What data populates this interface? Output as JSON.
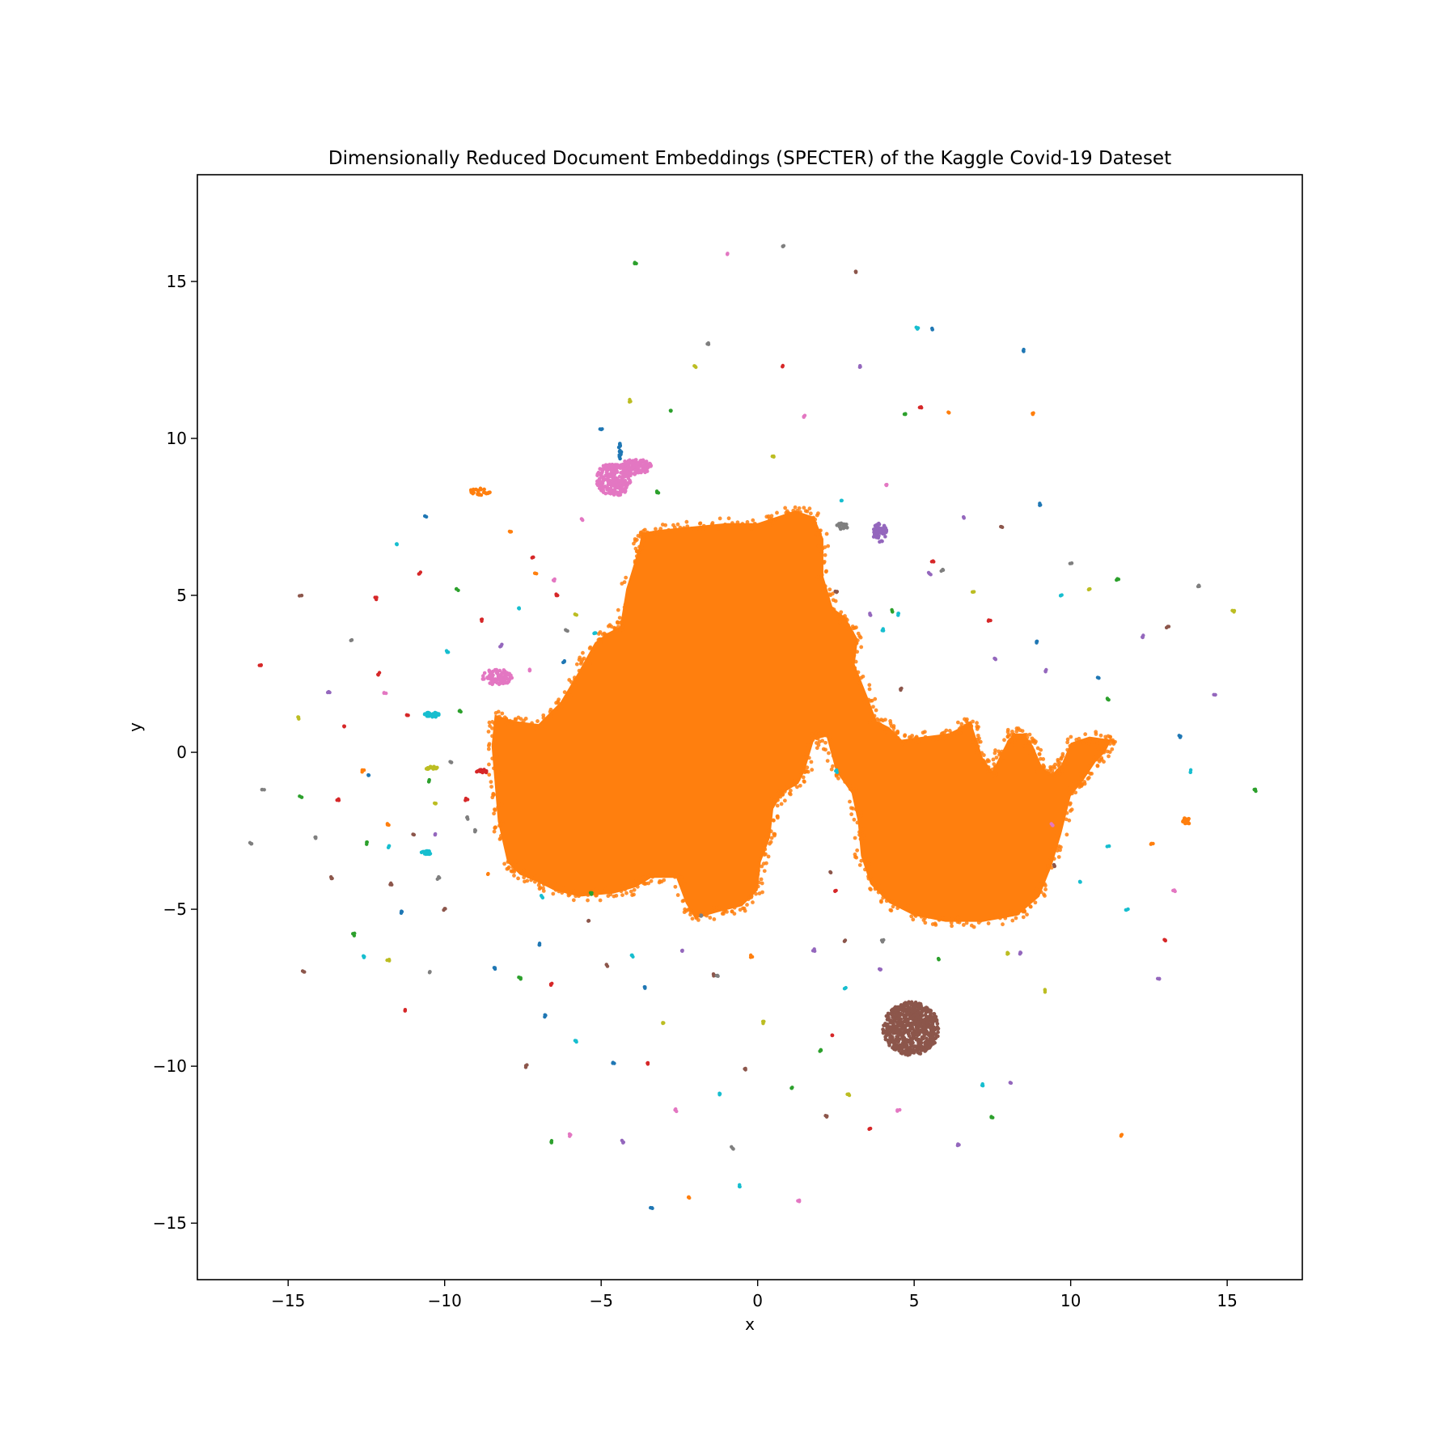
{
  "chart_data": {
    "type": "scatter",
    "title": "Dimensionally Reduced Document Embeddings (SPECTER) of the Kaggle Covid-19 Dateset",
    "xlabel": "x",
    "ylabel": "y",
    "xlim": [
      -17.9,
      17.4
    ],
    "ylim": [
      -16.8,
      18.4
    ],
    "xticks": [
      -15,
      -10,
      -5,
      0,
      5,
      10,
      15
    ],
    "xtick_labels": [
      "−15",
      "−10",
      "−5",
      "0",
      "5",
      "10",
      "15"
    ],
    "yticks": [
      -15,
      -10,
      -5,
      0,
      5,
      10,
      15
    ],
    "ytick_labels": [
      "−15",
      "−10",
      "−5",
      "0",
      "5",
      "10",
      "15"
    ],
    "grid": false,
    "legend": "none",
    "main_cluster": {
      "color": "#ff7f0e",
      "outline": [
        [
          -8.4,
          1.2
        ],
        [
          -7.8,
          1.0
        ],
        [
          -7.0,
          0.9
        ],
        [
          -6.3,
          1.6
        ],
        [
          -5.7,
          2.6
        ],
        [
          -5.2,
          3.5
        ],
        [
          -4.8,
          3.8
        ],
        [
          -4.4,
          4.0
        ],
        [
          -4.2,
          5.2
        ],
        [
          -3.8,
          6.5
        ],
        [
          -3.7,
          7.0
        ],
        [
          -3.0,
          7.1
        ],
        [
          -2.0,
          7.2
        ],
        [
          -1.0,
          7.3
        ],
        [
          0.0,
          7.3
        ],
        [
          0.6,
          7.5
        ],
        [
          1.2,
          7.7
        ],
        [
          1.8,
          7.5
        ],
        [
          2.1,
          6.8
        ],
        [
          2.1,
          5.6
        ],
        [
          2.4,
          4.6
        ],
        [
          2.8,
          4.3
        ],
        [
          3.2,
          3.6
        ],
        [
          3.1,
          2.8
        ],
        [
          3.5,
          1.8
        ],
        [
          3.8,
          1.0
        ],
        [
          4.2,
          0.8
        ],
        [
          4.6,
          0.4
        ],
        [
          5.3,
          0.5
        ],
        [
          6.1,
          0.6
        ],
        [
          6.5,
          0.8
        ],
        [
          6.8,
          1.0
        ],
        [
          7.0,
          0.4
        ],
        [
          7.2,
          -0.2
        ],
        [
          7.5,
          -0.6
        ],
        [
          7.7,
          -0.2
        ],
        [
          8.0,
          0.4
        ],
        [
          8.2,
          0.6
        ],
        [
          8.5,
          0.6
        ],
        [
          8.8,
          0.2
        ],
        [
          9.1,
          -0.5
        ],
        [
          9.4,
          -0.7
        ],
        [
          9.7,
          -0.4
        ],
        [
          10.0,
          0.3
        ],
        [
          10.6,
          0.5
        ],
        [
          11.3,
          0.4
        ],
        [
          11.1,
          0.0
        ],
        [
          10.8,
          -0.3
        ],
        [
          10.4,
          -0.9
        ],
        [
          10.0,
          -1.4
        ],
        [
          9.7,
          -2.6
        ],
        [
          9.4,
          -3.6
        ],
        [
          9.0,
          -4.6
        ],
        [
          8.3,
          -5.2
        ],
        [
          7.2,
          -5.4
        ],
        [
          6.0,
          -5.4
        ],
        [
          5.0,
          -5.2
        ],
        [
          4.2,
          -4.8
        ],
        [
          3.6,
          -4.2
        ],
        [
          3.3,
          -3.3
        ],
        [
          3.2,
          -2.2
        ],
        [
          3.0,
          -1.3
        ],
        [
          2.5,
          -0.6
        ],
        [
          2.2,
          0.5
        ],
        [
          1.8,
          0.4
        ],
        [
          1.5,
          -0.6
        ],
        [
          1.3,
          -1.0
        ],
        [
          0.8,
          -1.3
        ],
        [
          0.5,
          -1.8
        ],
        [
          0.4,
          -2.7
        ],
        [
          0.1,
          -3.5
        ],
        [
          0.0,
          -4.4
        ],
        [
          -0.5,
          -4.9
        ],
        [
          -1.3,
          -5.1
        ],
        [
          -2.0,
          -5.3
        ],
        [
          -2.3,
          -4.8
        ],
        [
          -2.6,
          -4.0
        ],
        [
          -3.4,
          -4.0
        ],
        [
          -3.9,
          -4.3
        ],
        [
          -4.6,
          -4.5
        ],
        [
          -5.7,
          -4.6
        ],
        [
          -6.5,
          -4.4
        ],
        [
          -7.1,
          -4.1
        ],
        [
          -7.6,
          -3.9
        ],
        [
          -8.0,
          -3.5
        ],
        [
          -8.3,
          -2.2
        ],
        [
          -8.4,
          -1.0
        ],
        [
          -8.5,
          0.2
        ]
      ]
    },
    "clusters": [
      {
        "color": "#8c564b",
        "x": 4.9,
        "y": -8.8,
        "rx": 0.9,
        "ry": 0.85,
        "n": 700
      },
      {
        "color": "#e377c2",
        "x": -4.6,
        "y": 8.7,
        "rx": 0.55,
        "ry": 0.55,
        "n": 220
      },
      {
        "color": "#e377c2",
        "x": -3.9,
        "y": 9.1,
        "rx": 0.5,
        "ry": 0.25,
        "n": 120
      },
      {
        "color": "#e377c2",
        "x": -8.3,
        "y": 2.4,
        "rx": 0.5,
        "ry": 0.25,
        "n": 90
      },
      {
        "color": "#9467bd",
        "x": 3.9,
        "y": 7.0,
        "rx": 0.22,
        "ry": 0.3,
        "n": 60
      },
      {
        "color": "#17becf",
        "x": -10.4,
        "y": 1.2,
        "rx": 0.25,
        "ry": 0.08,
        "n": 30
      },
      {
        "color": "#bcbd22",
        "x": -10.4,
        "y": -0.5,
        "rx": 0.2,
        "ry": 0.06,
        "n": 20
      },
      {
        "color": "#d62728",
        "x": -8.8,
        "y": -0.6,
        "rx": 0.2,
        "ry": 0.06,
        "n": 20
      },
      {
        "color": "#17becf",
        "x": -10.6,
        "y": -3.2,
        "rx": 0.18,
        "ry": 0.06,
        "n": 18
      },
      {
        "color": "#7f7f7f",
        "x": 2.7,
        "y": 7.2,
        "rx": 0.18,
        "ry": 0.1,
        "n": 20
      },
      {
        "color": "#1f77b4",
        "x": -4.4,
        "y": 9.6,
        "rx": 0.05,
        "ry": 0.25,
        "n": 15
      },
      {
        "color": "#ff7f0e",
        "x": -8.9,
        "y": 8.3,
        "rx": 0.35,
        "ry": 0.12,
        "n": 25
      },
      {
        "color": "#ff7f0e",
        "x": 13.7,
        "y": -2.2,
        "rx": 0.12,
        "ry": 0.12,
        "n": 15
      }
    ],
    "scatter_points": [
      [
        -16.2,
        -2.9,
        "#7f7f7f"
      ],
      [
        -15.9,
        2.8,
        "#d62728"
      ],
      [
        -15.8,
        -1.2,
        "#7f7f7f"
      ],
      [
        -14.7,
        1.1,
        "#bcbd22"
      ],
      [
        -14.6,
        -1.4,
        "#2ca02c"
      ],
      [
        -14.5,
        -7.0,
        "#8c564b"
      ],
      [
        -14.6,
        5.0,
        "#8c564b"
      ],
      [
        -14.1,
        -2.7,
        "#7f7f7f"
      ],
      [
        -13.7,
        1.9,
        "#9467bd"
      ],
      [
        -13.6,
        -4.0,
        "#8c564b"
      ],
      [
        -13.4,
        -1.5,
        "#d62728"
      ],
      [
        -13.2,
        0.8,
        "#d62728"
      ],
      [
        -13.0,
        3.6,
        "#7f7f7f"
      ],
      [
        -12.9,
        -5.8,
        "#2ca02c"
      ],
      [
        -12.6,
        -0.6,
        "#ff7f0e"
      ],
      [
        -12.5,
        -2.9,
        "#2ca02c"
      ],
      [
        -12.4,
        -0.7,
        "#1f77b4"
      ],
      [
        -12.2,
        4.9,
        "#d62728"
      ],
      [
        -12.1,
        2.5,
        "#d62728"
      ],
      [
        -11.9,
        1.9,
        "#e377c2"
      ],
      [
        -11.8,
        -2.3,
        "#ff7f0e"
      ],
      [
        -11.8,
        -6.6,
        "#bcbd22"
      ],
      [
        -11.7,
        -4.2,
        "#8c564b"
      ],
      [
        -11.5,
        6.6,
        "#17becf"
      ],
      [
        -11.4,
        -5.1,
        "#1f77b4"
      ],
      [
        -11.3,
        -8.2,
        "#d62728"
      ],
      [
        -11.2,
        1.2,
        "#d62728"
      ],
      [
        -11.0,
        -2.6,
        "#8c564b"
      ],
      [
        -10.8,
        5.7,
        "#d62728"
      ],
      [
        -10.6,
        7.5,
        "#1f77b4"
      ],
      [
        -10.5,
        -0.9,
        "#2ca02c"
      ],
      [
        -10.3,
        -1.6,
        "#bcbd22"
      ],
      [
        -10.2,
        -4.0,
        "#7f7f7f"
      ],
      [
        -10.0,
        -5.0,
        "#8c564b"
      ],
      [
        -9.9,
        3.2,
        "#17becf"
      ],
      [
        -9.8,
        -0.3,
        "#7f7f7f"
      ],
      [
        -9.6,
        5.2,
        "#2ca02c"
      ],
      [
        -9.5,
        1.3,
        "#2ca02c"
      ],
      [
        -9.3,
        -1.5,
        "#d62728"
      ],
      [
        -9.0,
        -2.5,
        "#7f7f7f"
      ],
      [
        -8.8,
        4.2,
        "#d62728"
      ],
      [
        -8.6,
        -3.9,
        "#ff7f0e"
      ],
      [
        -8.4,
        -6.9,
        "#1f77b4"
      ],
      [
        -8.2,
        3.4,
        "#9467bd"
      ],
      [
        -7.9,
        7.0,
        "#ff7f0e"
      ],
      [
        -7.6,
        -7.2,
        "#2ca02c"
      ],
      [
        -7.4,
        -10.0,
        "#8c564b"
      ],
      [
        -7.2,
        6.2,
        "#d62728"
      ],
      [
        -7.0,
        -6.1,
        "#1f77b4"
      ],
      [
        -6.8,
        -8.4,
        "#1f77b4"
      ],
      [
        -6.6,
        -12.4,
        "#2ca02c"
      ],
      [
        -6.4,
        5.0,
        "#d62728"
      ],
      [
        -6.2,
        2.9,
        "#1f77b4"
      ],
      [
        -6.0,
        -12.2,
        "#e377c2"
      ],
      [
        -5.8,
        -9.2,
        "#17becf"
      ],
      [
        -5.6,
        7.4,
        "#e377c2"
      ],
      [
        -5.4,
        -5.4,
        "#8c564b"
      ],
      [
        -5.2,
        3.8,
        "#17becf"
      ],
      [
        -5.0,
        10.3,
        "#1f77b4"
      ],
      [
        -4.8,
        -6.8,
        "#8c564b"
      ],
      [
        -4.6,
        -9.9,
        "#1f77b4"
      ],
      [
        -4.3,
        -12.4,
        "#9467bd"
      ],
      [
        -4.1,
        11.2,
        "#bcbd22"
      ],
      [
        -4.0,
        -6.5,
        "#17becf"
      ],
      [
        -3.9,
        15.6,
        "#2ca02c"
      ],
      [
        -3.6,
        -7.5,
        "#1f77b4"
      ],
      [
        -3.4,
        -14.5,
        "#1f77b4"
      ],
      [
        -3.2,
        8.3,
        "#2ca02c"
      ],
      [
        -3.0,
        -8.6,
        "#bcbd22"
      ],
      [
        -2.8,
        10.9,
        "#2ca02c"
      ],
      [
        -2.6,
        -11.4,
        "#e377c2"
      ],
      [
        -2.4,
        -6.3,
        "#9467bd"
      ],
      [
        -2.2,
        -14.2,
        "#ff7f0e"
      ],
      [
        -2.0,
        12.3,
        "#bcbd22"
      ],
      [
        -1.8,
        -5.2,
        "#7f7f7f"
      ],
      [
        -1.6,
        13.0,
        "#7f7f7f"
      ],
      [
        -1.4,
        -7.1,
        "#8c564b"
      ],
      [
        -1.2,
        -10.9,
        "#17becf"
      ],
      [
        -1.0,
        15.9,
        "#e377c2"
      ],
      [
        -0.8,
        -12.6,
        "#7f7f7f"
      ],
      [
        -0.6,
        -13.8,
        "#17becf"
      ],
      [
        -0.4,
        -10.1,
        "#8c564b"
      ],
      [
        -0.2,
        -6.5,
        "#ff7f0e"
      ],
      [
        0.2,
        -8.6,
        "#bcbd22"
      ],
      [
        0.5,
        9.4,
        "#bcbd22"
      ],
      [
        0.8,
        16.1,
        "#7f7f7f"
      ],
      [
        0.8,
        12.3,
        "#d62728"
      ],
      [
        1.1,
        -10.7,
        "#2ca02c"
      ],
      [
        1.3,
        -14.3,
        "#e377c2"
      ],
      [
        1.5,
        10.7,
        "#e377c2"
      ],
      [
        1.8,
        -6.3,
        "#9467bd"
      ],
      [
        2.0,
        -9.5,
        "#2ca02c"
      ],
      [
        2.2,
        -11.6,
        "#8c564b"
      ],
      [
        2.5,
        5.1,
        "#8c564b"
      ],
      [
        2.7,
        8.0,
        "#17becf"
      ],
      [
        2.9,
        -10.9,
        "#bcbd22"
      ],
      [
        3.1,
        15.3,
        "#8c564b"
      ],
      [
        3.3,
        12.3,
        "#9467bd"
      ],
      [
        3.6,
        -12.0,
        "#d62728"
      ],
      [
        3.9,
        -6.9,
        "#9467bd"
      ],
      [
        4.1,
        8.5,
        "#e377c2"
      ],
      [
        4.3,
        4.5,
        "#2ca02c"
      ],
      [
        4.5,
        -11.4,
        "#e377c2"
      ],
      [
        4.7,
        10.8,
        "#2ca02c"
      ],
      [
        5.1,
        13.5,
        "#17becf"
      ],
      [
        5.2,
        11.0,
        "#d62728"
      ],
      [
        5.6,
        13.5,
        "#1f77b4"
      ],
      [
        5.8,
        -6.6,
        "#2ca02c"
      ],
      [
        6.1,
        10.8,
        "#ff7f0e"
      ],
      [
        6.4,
        -12.5,
        "#9467bd"
      ],
      [
        6.6,
        7.5,
        "#9467bd"
      ],
      [
        6.9,
        5.1,
        "#bcbd22"
      ],
      [
        7.2,
        -10.6,
        "#17becf"
      ],
      [
        7.5,
        -11.6,
        "#2ca02c"
      ],
      [
        7.8,
        7.2,
        "#8c564b"
      ],
      [
        8.1,
        -10.5,
        "#9467bd"
      ],
      [
        8.5,
        12.8,
        "#1f77b4"
      ],
      [
        8.8,
        10.8,
        "#ff7f0e"
      ],
      [
        9.0,
        7.9,
        "#1f77b4"
      ],
      [
        9.2,
        -7.6,
        "#bcbd22"
      ],
      [
        9.5,
        -3.6,
        "#8c564b"
      ],
      [
        9.7,
        5.0,
        "#17becf"
      ],
      [
        10.0,
        6.0,
        "#7f7f7f"
      ],
      [
        10.3,
        -4.1,
        "#17becf"
      ],
      [
        10.6,
        5.2,
        "#bcbd22"
      ],
      [
        10.9,
        2.4,
        "#1f77b4"
      ],
      [
        11.2,
        -3.0,
        "#17becf"
      ],
      [
        11.5,
        5.5,
        "#2ca02c"
      ],
      [
        11.6,
        -12.2,
        "#ff7f0e"
      ],
      [
        11.8,
        -5.0,
        "#17becf"
      ],
      [
        12.3,
        3.7,
        "#9467bd"
      ],
      [
        12.6,
        -2.9,
        "#ff7f0e"
      ],
      [
        12.8,
        -7.2,
        "#9467bd"
      ],
      [
        13.0,
        -6.0,
        "#d62728"
      ],
      [
        13.1,
        4.0,
        "#8c564b"
      ],
      [
        13.3,
        -4.4,
        "#e377c2"
      ],
      [
        13.5,
        0.5,
        "#1f77b4"
      ],
      [
        13.8,
        -0.6,
        "#17becf"
      ],
      [
        14.1,
        5.3,
        "#7f7f7f"
      ],
      [
        14.6,
        1.8,
        "#9467bd"
      ],
      [
        15.2,
        4.5,
        "#bcbd22"
      ],
      [
        15.9,
        -1.2,
        "#2ca02c"
      ],
      [
        -6.9,
        -4.6,
        "#17becf"
      ],
      [
        -5.3,
        -4.5,
        "#2ca02c"
      ],
      [
        -7.3,
        2.6,
        "#e377c2"
      ],
      [
        -5.8,
        4.4,
        "#bcbd22"
      ],
      [
        -6.1,
        3.9,
        "#7f7f7f"
      ],
      [
        -7.6,
        4.6,
        "#17becf"
      ],
      [
        -6.5,
        5.5,
        "#e377c2"
      ],
      [
        -7.1,
        5.7,
        "#ff7f0e"
      ],
      [
        2.5,
        -0.6,
        "#17becf"
      ],
      [
        2.3,
        -3.8,
        "#8c564b"
      ],
      [
        2.5,
        -4.4,
        "#d62728"
      ],
      [
        2.8,
        -6.0,
        "#8c564b"
      ],
      [
        2.8,
        -7.5,
        "#17becf"
      ],
      [
        4.6,
        2.0,
        "#8c564b"
      ],
      [
        3.6,
        4.4,
        "#9467bd"
      ],
      [
        4.0,
        3.9,
        "#17becf"
      ],
      [
        4.5,
        4.4,
        "#17becf"
      ],
      [
        5.6,
        6.1,
        "#d62728"
      ],
      [
        5.5,
        5.7,
        "#9467bd"
      ],
      [
        5.9,
        5.8,
        "#7f7f7f"
      ],
      [
        7.4,
        4.2,
        "#d62728"
      ],
      [
        8.9,
        3.5,
        "#1f77b4"
      ],
      [
        7.6,
        3.0,
        "#9467bd"
      ],
      [
        9.2,
        2.6,
        "#9467bd"
      ],
      [
        11.2,
        1.7,
        "#2ca02c"
      ],
      [
        9.4,
        -2.3,
        "#e377c2"
      ],
      [
        8.0,
        -6.4,
        "#bcbd22"
      ],
      [
        8.4,
        -6.4,
        "#9467bd"
      ],
      [
        4.0,
        -6.0,
        "#7f7f7f"
      ],
      [
        2.4,
        -9.0,
        "#d62728"
      ],
      [
        -1.3,
        -7.1,
        "#7f7f7f"
      ],
      [
        -3.5,
        -9.9,
        "#d62728"
      ],
      [
        -6.6,
        -7.4,
        "#d62728"
      ],
      [
        -10.5,
        -7.0,
        "#7f7f7f"
      ],
      [
        -11.8,
        -3.0,
        "#17becf"
      ],
      [
        -12.6,
        -6.5,
        "#17becf"
      ],
      [
        -9.3,
        -2.1,
        "#7f7f7f"
      ],
      [
        -10.3,
        -2.6,
        "#9467bd"
      ]
    ]
  }
}
